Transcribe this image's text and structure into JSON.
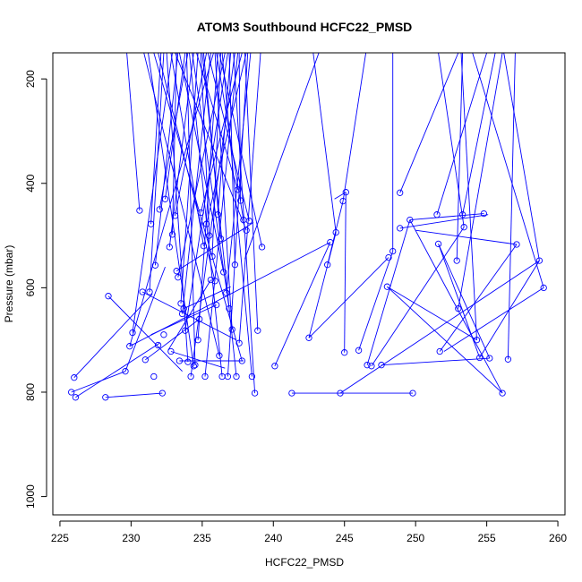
{
  "chart_data": {
    "type": "scatter",
    "title": "ATOM3 Southbound HCFC22_PMSD",
    "xlabel": "HCFC22_PMSD",
    "ylabel": "Pressure (mbar)",
    "xlim": [
      224.5,
      260.5
    ],
    "ylim": [
      1035,
      150
    ],
    "y_reversed": true,
    "x_ticks": [
      225,
      230,
      235,
      240,
      245,
      250,
      255,
      260
    ],
    "y_ticks": [
      200,
      400,
      600,
      800,
      1000
    ],
    "grid": false,
    "legend": "none",
    "series_color": "#0000ff",
    "series": [
      {
        "values": [
          [
            230.6,
            452
          ],
          [
            231.3,
            608
          ],
          [
            226.0,
            772
          ],
          [
            225.8,
            800
          ],
          [
            226.1,
            810
          ],
          [
            229.6,
            760
          ],
          [
            229.9,
            712
          ],
          [
            230.1,
            686
          ],
          [
            228.4,
            616
          ],
          [
            228.2,
            810
          ],
          [
            232.2,
            802
          ],
          [
            231.6,
            770
          ],
          [
            231.9,
            710
          ],
          [
            232.3,
            690
          ],
          [
            231.4,
            478
          ],
          [
            231.7,
            557
          ],
          [
            232.0,
            450
          ],
          [
            232.4,
            430
          ],
          [
            232.7,
            522
          ],
          [
            232.9,
            498
          ],
          [
            233.1,
            462
          ],
          [
            233.3,
            580
          ],
          [
            233.5,
            630
          ],
          [
            233.6,
            650
          ],
          [
            233.8,
            682
          ],
          [
            234.0,
            742
          ],
          [
            234.2,
            770
          ],
          [
            234.5,
            748
          ],
          [
            234.7,
            700
          ],
          [
            234.9,
            456
          ],
          [
            235.1,
            520
          ],
          [
            235.3,
            478
          ],
          [
            235.5,
            500
          ],
          [
            235.7,
            540
          ],
          [
            235.9,
            587
          ],
          [
            236.1,
            460
          ],
          [
            236.3,
            506
          ],
          [
            236.5,
            570
          ],
          [
            236.7,
            610
          ],
          [
            236.9,
            640
          ],
          [
            237.1,
            680
          ],
          [
            237.3,
            556
          ],
          [
            237.5,
            412
          ],
          [
            237.7,
            433
          ],
          [
            237.9,
            470
          ],
          [
            238.1,
            490
          ],
          [
            238.3,
            472
          ],
          [
            238.5,
            770
          ],
          [
            238.7,
            802
          ],
          [
            238.9,
            682
          ],
          [
            239.2,
            522
          ],
          [
            235.2,
            770
          ],
          [
            236.4,
            770
          ],
          [
            236.8,
            770
          ],
          [
            237.4,
            770
          ],
          [
            237.8,
            740
          ],
          [
            237.6,
            706
          ],
          [
            236.2,
            730
          ],
          [
            234.4,
            750
          ],
          [
            233.4,
            740
          ],
          [
            232.8,
            722
          ],
          [
            231.0,
            738
          ],
          [
            230.8,
            608
          ],
          [
            233.2,
            568
          ],
          [
            234.8,
            660
          ],
          [
            235.6,
            585
          ],
          [
            236.0,
            633
          ],
          [
            233.7,
            640
          ],
          [
            240.1,
            750
          ],
          [
            241.3,
            802
          ],
          [
            242.5,
            696
          ],
          [
            244.0,
            513
          ],
          [
            243.8,
            556
          ],
          [
            244.4,
            494
          ],
          [
            244.9,
            434
          ],
          [
            245.1,
            417
          ],
          [
            245.0,
            724
          ],
          [
            246.0,
            720
          ],
          [
            246.6,
            748
          ],
          [
            246.9,
            750
          ],
          [
            247.6,
            748
          ],
          [
            244.7,
            802
          ],
          [
            248.0,
            598
          ],
          [
            248.1,
            542
          ],
          [
            248.4,
            530
          ],
          [
            248.9,
            486
          ],
          [
            248.9,
            418
          ],
          [
            249.6,
            470
          ],
          [
            249.8,
            802
          ],
          [
            251.5,
            460
          ],
          [
            251.6,
            516
          ],
          [
            251.7,
            722
          ],
          [
            252.9,
            548
          ],
          [
            253.0,
            640
          ],
          [
            253.3,
            460
          ],
          [
            253.4,
            484
          ],
          [
            254.3,
            700
          ],
          [
            254.5,
            734
          ],
          [
            254.8,
            458
          ],
          [
            255.2,
            735
          ],
          [
            256.1,
            802
          ],
          [
            256.5,
            737
          ],
          [
            257.1,
            517
          ],
          [
            258.7,
            548
          ],
          [
            259.0,
            600
          ]
        ]
      }
    ],
    "segments": [
      [
        230.6,
        452,
        229.7,
        150
      ],
      [
        231.3,
        608,
        232.3,
        150
      ],
      [
        226.0,
        772,
        231.5,
        612
      ],
      [
        225.8,
        800,
        229.6,
        760
      ],
      [
        226.1,
        810,
        232.0,
        706
      ],
      [
        228.2,
        810,
        232.2,
        802
      ],
      [
        229.9,
        712,
        235.8,
        150
      ],
      [
        228.4,
        616,
        233.6,
        760
      ],
      [
        230.1,
        686,
        232.9,
        150
      ],
      [
        231.4,
        478,
        232.1,
        150
      ],
      [
        231.7,
        557,
        233.3,
        150
      ],
      [
        232.0,
        450,
        234.0,
        150
      ],
      [
        232.4,
        430,
        233.8,
        150
      ],
      [
        232.7,
        522,
        234.4,
        150
      ],
      [
        232.9,
        498,
        233.2,
        150
      ],
      [
        233.1,
        462,
        235.3,
        150
      ],
      [
        233.3,
        580,
        236.6,
        150
      ],
      [
        233.5,
        630,
        234.7,
        150
      ],
      [
        233.6,
        650,
        235.6,
        150
      ],
      [
        233.8,
        682,
        236.8,
        150
      ],
      [
        234.0,
        742,
        232.5,
        150
      ],
      [
        234.2,
        770,
        237.3,
        150
      ],
      [
        234.5,
        748,
        233.9,
        150
      ],
      [
        234.7,
        700,
        236.1,
        150
      ],
      [
        234.9,
        456,
        237.8,
        150
      ],
      [
        235.1,
        520,
        232.8,
        150
      ],
      [
        235.3,
        478,
        238.1,
        150
      ],
      [
        235.5,
        500,
        234.9,
        150
      ],
      [
        235.7,
        540,
        236.3,
        150
      ],
      [
        235.9,
        587,
        231.9,
        150
      ],
      [
        236.1,
        460,
        237.0,
        150
      ],
      [
        236.3,
        506,
        235.1,
        150
      ],
      [
        236.5,
        570,
        233.4,
        150
      ],
      [
        236.7,
        610,
        238.4,
        150
      ],
      [
        236.9,
        640,
        234.3,
        150
      ],
      [
        237.1,
        680,
        235.9,
        150
      ],
      [
        237.3,
        556,
        236.9,
        150
      ],
      [
        237.5,
        412,
        234.6,
        150
      ],
      [
        237.7,
        433,
        237.6,
        150
      ],
      [
        237.9,
        470,
        236.0,
        150
      ],
      [
        238.1,
        490,
        233.1,
        150
      ],
      [
        238.3,
        472,
        235.4,
        150
      ],
      [
        238.5,
        770,
        236.4,
        150
      ],
      [
        238.7,
        802,
        237.2,
        150
      ],
      [
        238.9,
        682,
        238.0,
        150
      ],
      [
        239.2,
        522,
        236.2,
        150
      ],
      [
        235.2,
        770,
        237.5,
        150
      ],
      [
        236.4,
        770,
        234.1,
        150
      ],
      [
        236.8,
        770,
        238.2,
        150
      ],
      [
        237.4,
        770,
        235.0,
        150
      ],
      [
        237.8,
        740,
        231.6,
        150
      ],
      [
        237.6,
        706,
        239.1,
        150
      ],
      [
        236.2,
        730,
        230.9,
        150
      ],
      [
        234.4,
        750,
        231.2,
        150
      ],
      [
        233.4,
        740,
        237.9,
        740
      ],
      [
        232.8,
        722,
        236.6,
        754
      ],
      [
        231.0,
        738,
        234.8,
        660
      ],
      [
        230.8,
        608,
        237.4,
        700
      ],
      [
        233.2,
        568,
        238.6,
        475
      ],
      [
        235.6,
        585,
        232.6,
        720
      ],
      [
        236.0,
        633,
        231.4,
        690
      ],
      [
        233.7,
        640,
        237.0,
        598
      ],
      [
        229.6,
        760,
        232.4,
        560
      ],
      [
        238.0,
        545,
        243.2,
        150
      ],
      [
        240.1,
        750,
        244.0,
        513
      ],
      [
        242.5,
        696,
        244.4,
        494
      ],
      [
        243.8,
        556,
        244.9,
        434
      ],
      [
        244.0,
        513,
        229.9,
        712
      ],
      [
        244.4,
        494,
        242.8,
        150
      ],
      [
        244.9,
        434,
        246.5,
        150
      ],
      [
        245.1,
        417,
        244.3,
        430
      ],
      [
        245.0,
        724,
        245.1,
        417
      ],
      [
        246.0,
        720,
        248.4,
        530
      ],
      [
        246.6,
        748,
        249.6,
        470
      ],
      [
        246.9,
        750,
        253.4,
        484
      ],
      [
        247.6,
        748,
        255.2,
        735
      ],
      [
        241.3,
        802,
        249.8,
        802
      ],
      [
        244.7,
        802,
        258.7,
        548
      ],
      [
        248.0,
        598,
        254.3,
        700
      ],
      [
        248.1,
        542,
        242.5,
        696
      ],
      [
        248.4,
        530,
        248.4,
        150
      ],
      [
        248.9,
        486,
        255.1,
        460
      ],
      [
        248.9,
        418,
        253.0,
        150
      ],
      [
        249.6,
        470,
        256.1,
        802
      ],
      [
        251.5,
        460,
        255.0,
        150
      ],
      [
        251.6,
        516,
        254.5,
        734
      ],
      [
        251.7,
        722,
        257.1,
        517
      ],
      [
        252.9,
        548,
        253.3,
        150
      ],
      [
        253.0,
        640,
        256.1,
        150
      ],
      [
        253.3,
        460,
        255.6,
        150
      ],
      [
        253.4,
        484,
        251.6,
        150
      ],
      [
        254.3,
        700,
        253.2,
        150
      ],
      [
        254.5,
        734,
        258.7,
        548
      ],
      [
        254.8,
        458,
        249.6,
        470
      ],
      [
        255.2,
        735,
        251.6,
        516
      ],
      [
        256.1,
        802,
        248.0,
        598
      ],
      [
        256.5,
        737,
        257.0,
        150
      ],
      [
        257.1,
        517,
        250.0,
        490
      ],
      [
        258.7,
        548,
        256.2,
        150
      ],
      [
        259.0,
        600,
        254.0,
        150
      ],
      [
        252.0,
        722,
        259.0,
        600
      ]
    ]
  }
}
